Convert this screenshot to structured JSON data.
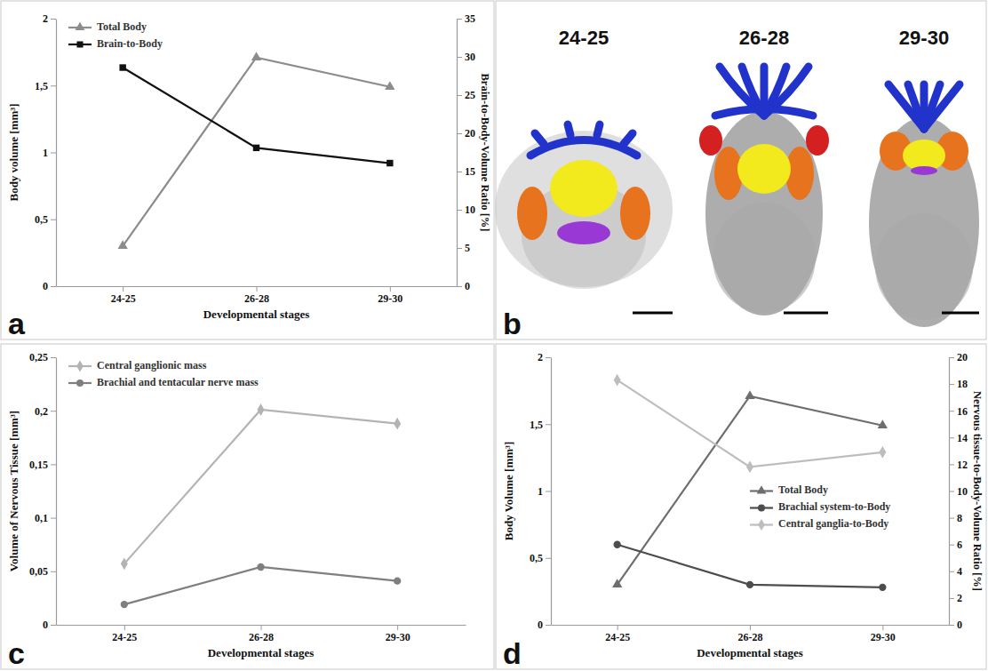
{
  "chart_data": [
    {
      "type": "line",
      "panel_label": "a",
      "x_label": "Developmental stages",
      "y_label": "Body volume [mm³]",
      "y2_label": "Brain-to-Body-Volume Ratio [%]",
      "categories": [
        "24-25",
        "26-28",
        "29-30"
      ],
      "series": [
        {
          "name": "Total Body",
          "color": "#8c8c8c",
          "marker": "triangle",
          "values": [
            0.3,
            1.71,
            1.49
          ]
        },
        {
          "name": "Brain-to-Body",
          "color": "#111111",
          "marker": "square",
          "axis": "y2",
          "values": [
            28.6,
            18.1,
            16.1
          ]
        }
      ],
      "ylim": [
        0,
        2
      ],
      "yticks": [
        0,
        {
          "value": 0.5,
          "label": "0,5"
        },
        1,
        {
          "value": 1.5,
          "label": "1,5"
        },
        2
      ],
      "y2lim": [
        0,
        35
      ],
      "y2ticks": [
        0,
        5,
        10,
        15,
        20,
        25,
        30,
        35
      ],
      "legend": "upper left"
    },
    {
      "type": "line",
      "panel_label": "c",
      "x_label": "Developmental stages",
      "y_label": "Volume of Nervous Tissue [mm³]",
      "categories": [
        "24-25",
        "26-28",
        "29-30"
      ],
      "series": [
        {
          "name": "Central ganglionic mass",
          "color": "#b3b3b3",
          "marker": "diamond",
          "values": [
            0.057,
            0.201,
            0.188
          ]
        },
        {
          "name": "Brachial and tentacular nerve mass",
          "color": "#7f7f7f",
          "marker": "circle",
          "values": [
            0.019,
            0.054,
            0.041
          ]
        }
      ],
      "ylim": [
        0,
        0.25
      ],
      "yticks": [
        0,
        {
          "value": 0.05,
          "label": "0,05"
        },
        {
          "value": 0.1,
          "label": "0,1"
        },
        {
          "value": 0.15,
          "label": "0,15"
        },
        {
          "value": 0.2,
          "label": "0,2"
        },
        {
          "value": 0.25,
          "label": "0,25"
        }
      ],
      "legend": "upper left"
    },
    {
      "type": "line",
      "panel_label": "d",
      "x_label": "Developmental stages",
      "y_label": "Body Volume [mm³]",
      "y2_label": "Nervous tissue-to-Body-Volume Ratio [%]",
      "categories": [
        "24-25",
        "26-28",
        "29-30"
      ],
      "series": [
        {
          "name": "Total Body",
          "color": "#6e6e6e",
          "marker": "triangle",
          "values": [
            0.3,
            1.71,
            1.49
          ]
        },
        {
          "name": "Brachial system-to-Body",
          "color": "#4d4d4d",
          "marker": "circle",
          "axis": "y2",
          "values": [
            6.0,
            3.0,
            2.8
          ]
        },
        {
          "name": "Central ganglia-to-Body",
          "color": "#bdbdbd",
          "marker": "diamond",
          "axis": "y2",
          "values": [
            18.3,
            11.8,
            12.9
          ]
        }
      ],
      "ylim": [
        0,
        2
      ],
      "yticks": [
        0,
        {
          "value": 0.5,
          "label": "0,5"
        },
        1,
        {
          "value": 1.5,
          "label": "1,5"
        },
        2
      ],
      "y2lim": [
        0,
        20
      ],
      "y2ticks": [
        0,
        2,
        4,
        6,
        8,
        10,
        12,
        14,
        16,
        18,
        20
      ],
      "legend": "center"
    }
  ],
  "panel_b": {
    "panel_label": "b",
    "labels": [
      "24-25",
      "26-28",
      "29-30"
    ]
  }
}
